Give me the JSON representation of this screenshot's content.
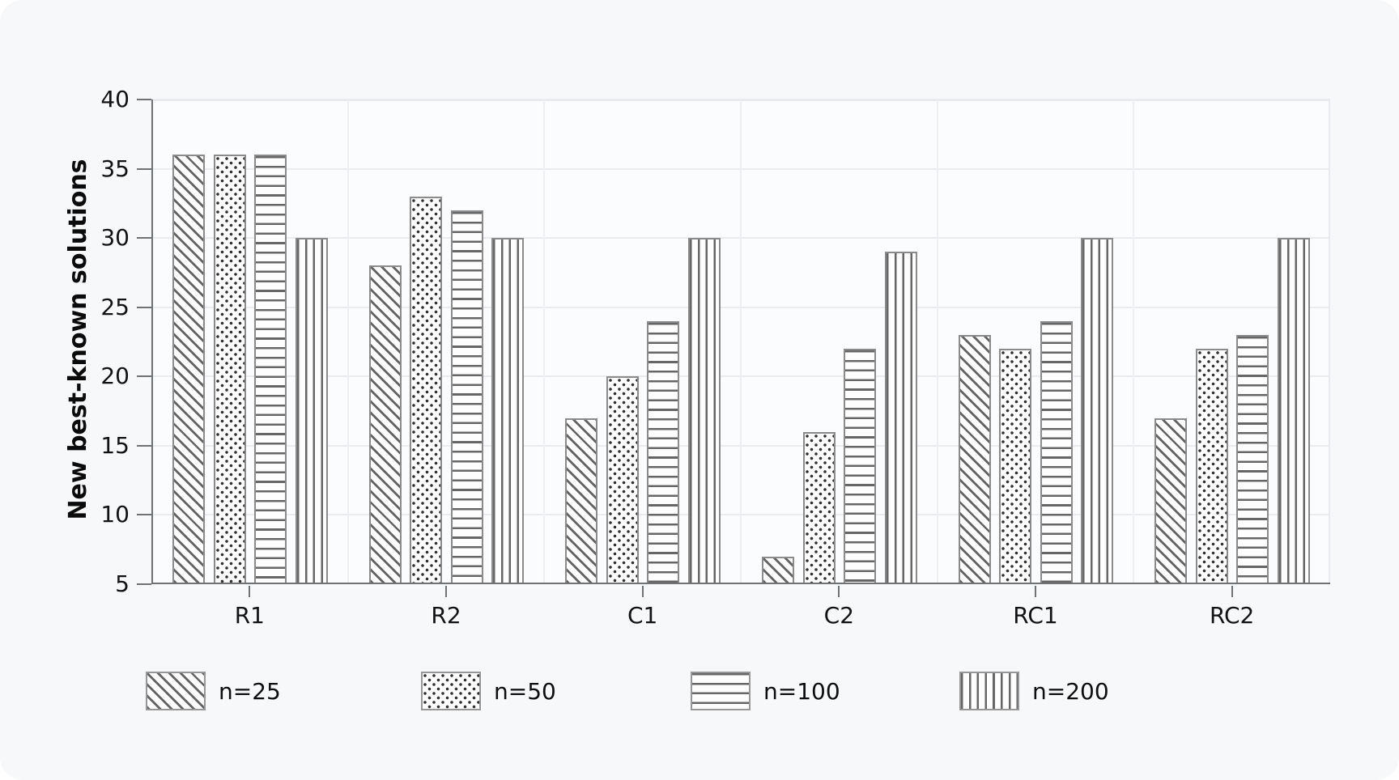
{
  "chart_data": {
    "type": "bar",
    "title": "",
    "xlabel": "",
    "ylabel": "New best-known solutions",
    "categories": [
      "R1",
      "R2",
      "C1",
      "C2",
      "RC1",
      "RC2"
    ],
    "series": [
      {
        "name": "n=25",
        "pattern": "diagonal-hatch",
        "values": [
          36,
          28,
          17,
          7,
          23,
          17
        ]
      },
      {
        "name": "n=50",
        "pattern": "dots",
        "values": [
          36,
          33,
          20,
          16,
          22,
          22
        ]
      },
      {
        "name": "n=100",
        "pattern": "horizontal-lines",
        "values": [
          36,
          32,
          24,
          22,
          24,
          23
        ]
      },
      {
        "name": "n=200",
        "pattern": "vertical-lines",
        "values": [
          30,
          30,
          30,
          29,
          30,
          30
        ]
      }
    ],
    "ylim": [
      5,
      40
    ],
    "yticks": [
      5,
      10,
      15,
      20,
      25,
      30,
      35,
      40
    ],
    "grid": true,
    "legend_position": "bottom",
    "colors": {
      "card_background": "#f7f8fa",
      "plot_background": "#fbfcfd",
      "bar_fill": "#fdfdfe",
      "bar_edge": "#8b8b8b",
      "hatch": "#5f5f5f",
      "gridline": "#e9ebef",
      "axis": "#6f7275",
      "text": "#121212"
    }
  }
}
